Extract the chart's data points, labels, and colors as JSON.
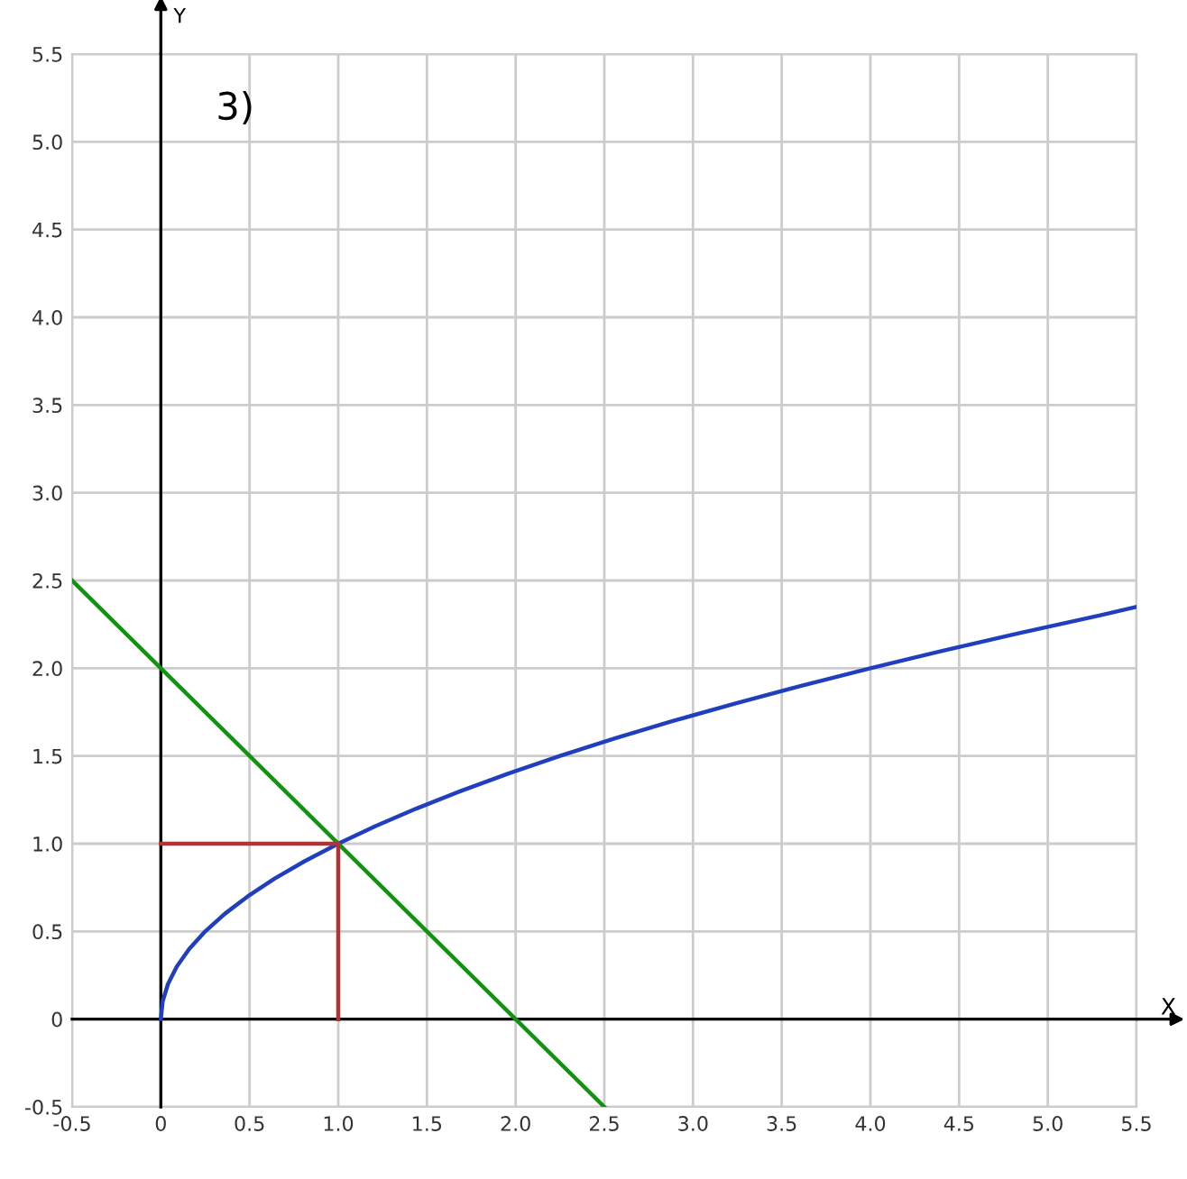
{
  "chart_data": {
    "type": "line",
    "annotations": [
      "3)"
    ],
    "xlabel": "X",
    "ylabel": "Y",
    "xlim": [
      -0.5,
      5.5
    ],
    "ylim": [
      -0.5,
      5.5
    ],
    "xticks": [
      {
        "value": -0.5,
        "label": "-0.5"
      },
      0,
      0.5,
      {
        "value": 1,
        "label": "1.0"
      },
      1.5,
      {
        "value": 2,
        "label": "2.0"
      },
      2.5,
      {
        "value": 3,
        "label": "3.0"
      },
      3.5,
      {
        "value": 4,
        "label": "4.0"
      },
      4.5,
      {
        "value": 5,
        "label": "5.0"
      },
      5.5
    ],
    "yticks": [
      {
        "value": -0.5,
        "label": "-0.5"
      },
      0,
      0.5,
      {
        "value": 1,
        "label": "1.0"
      },
      1.5,
      {
        "value": 2,
        "label": "2.0"
      },
      2.5,
      {
        "value": 3,
        "label": "3.0"
      },
      3.5,
      {
        "value": 4,
        "label": "4.0"
      },
      4.5,
      {
        "value": 5,
        "label": "5.0"
      },
      5.5
    ],
    "grid": true,
    "marker": "none",
    "line_style": "solid",
    "series": [
      {
        "color": "#1f3fbf",
        "x": [
          0,
          0.01,
          0.04,
          0.09,
          0.16,
          0.25,
          0.36,
          0.49,
          0.64,
          0.81,
          1,
          1.21,
          1.44,
          1.69,
          1.96,
          2.25,
          2.56,
          2.89,
          3.24,
          3.61,
          4,
          4.41,
          4.84,
          5.29,
          5.5
        ],
        "values": [
          0,
          0.1,
          0.2,
          0.3,
          0.4,
          0.5,
          0.6,
          0.7,
          0.8,
          0.9,
          1,
          1.1,
          1.2,
          1.3,
          1.4,
          1.5,
          1.6,
          1.7,
          1.8,
          1.9,
          2,
          2.1,
          2.2,
          2.3,
          2.35
        ]
      },
      {
        "color": "#109410",
        "x": [
          -0.5,
          2.5
        ],
        "values": [
          2.5,
          -0.5
        ]
      },
      {
        "color": "#b03434",
        "x": [
          0,
          1,
          1
        ],
        "values": [
          1,
          1,
          0
        ]
      }
    ]
  }
}
